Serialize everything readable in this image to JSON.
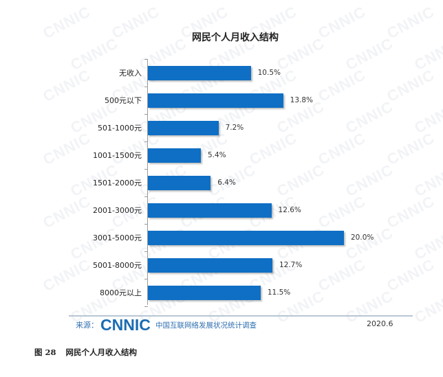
{
  "chart_data": {
    "type": "bar",
    "orientation": "horizontal",
    "title": "网民个人月收入结构",
    "categories": [
      "无收入",
      "500元以下",
      "501-1000元",
      "1001-1500元",
      "1501-2000元",
      "2001-3000元",
      "3001-5000元",
      "5001-8000元",
      "8000元以上"
    ],
    "values": [
      10.5,
      13.8,
      7.2,
      5.4,
      6.4,
      12.6,
      20.0,
      12.7,
      11.5
    ],
    "value_labels": [
      "10.5%",
      "13.8%",
      "7.2%",
      "5.4%",
      "6.4%",
      "12.6%",
      "20.0%",
      "12.7%",
      "11.5%"
    ],
    "unit": "%",
    "xlabel": "",
    "ylabel": "",
    "grid": false,
    "legend": null,
    "bar_color": "#0e6fc4"
  },
  "watermark": "CNNIC",
  "footer": {
    "source_label": "来源：",
    "logo": "CNNIC",
    "survey_name": "中国互联网络发展状况统计调查",
    "date": "2020.6"
  },
  "caption": {
    "figure_number": "图 28",
    "text": "网民个人月收入结构"
  }
}
